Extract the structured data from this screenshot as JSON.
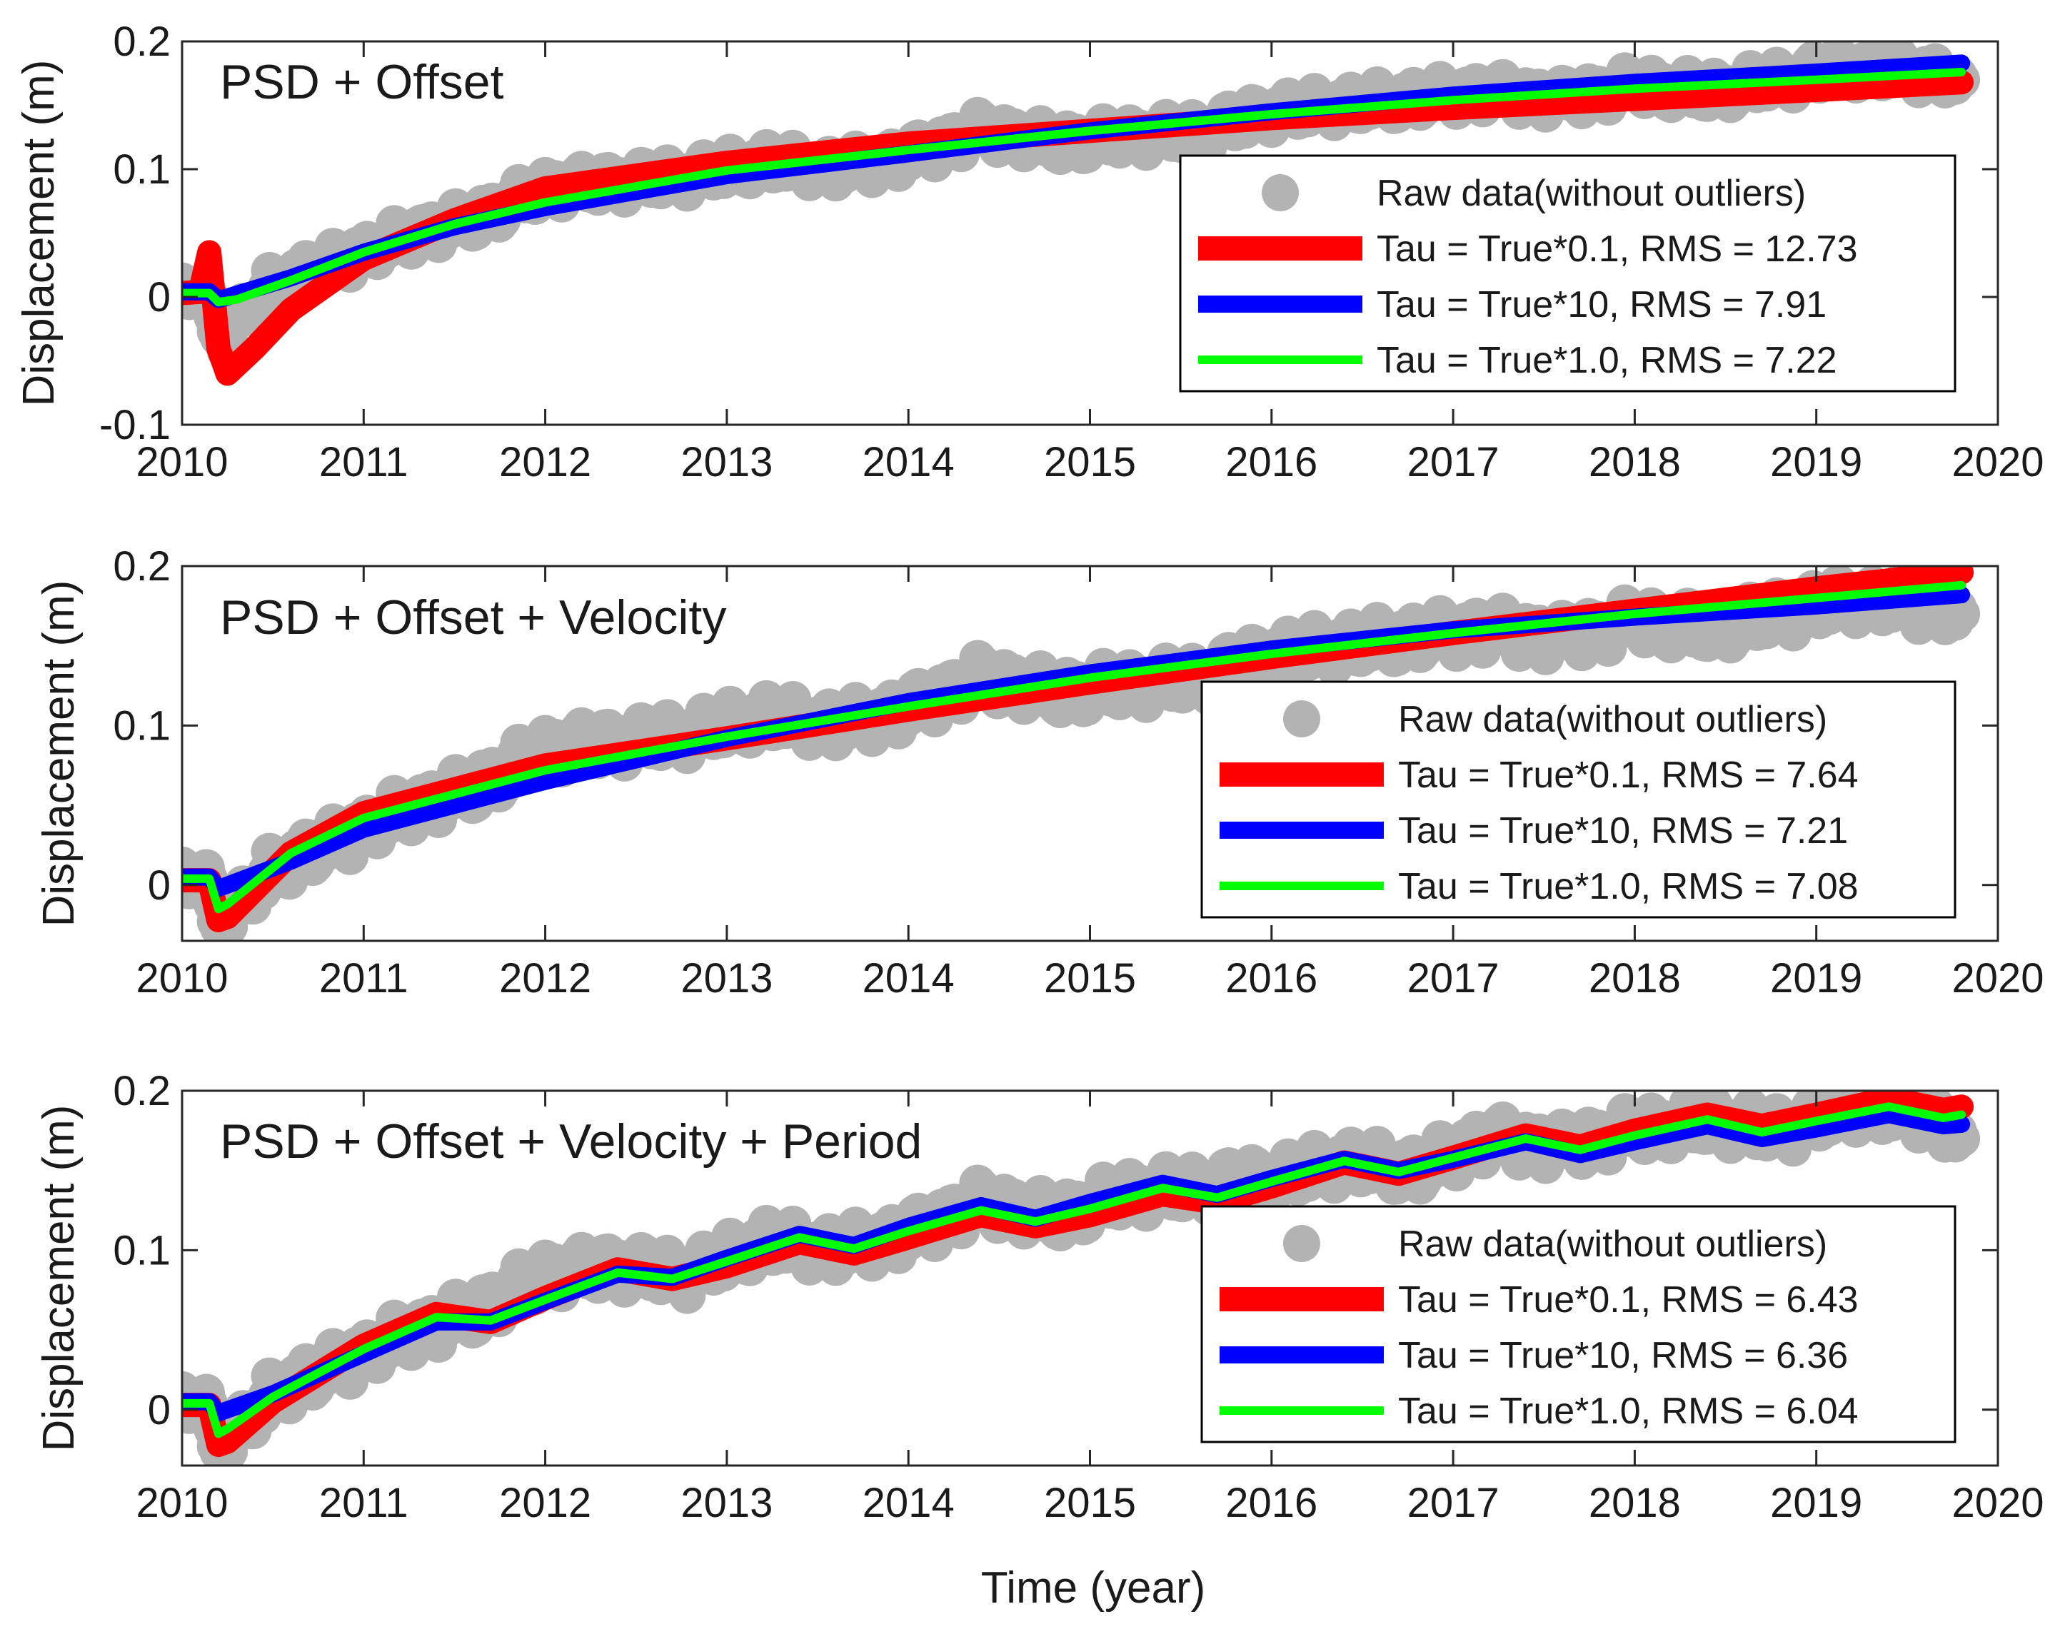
{
  "colors": {
    "raw": "#b3b3b3",
    "red": "#ff0000",
    "blue": "#0000ff",
    "green": "#00ff00",
    "axis": "#262626"
  },
  "xlabel": "Time (year)",
  "chart_data": [
    {
      "type": "line",
      "title": "PSD + Offset",
      "ylabel": "Displacement (m)",
      "xlim": [
        2010,
        2020
      ],
      "ylim": [
        -0.1,
        0.2
      ],
      "xticks": [
        2010,
        2011,
        2012,
        2013,
        2014,
        2015,
        2016,
        2017,
        2018,
        2019,
        2020
      ],
      "yticks": [
        -0.1,
        0,
        0.1,
        0.2
      ],
      "ytick_labels": [
        "-0.1",
        "0",
        "0.1",
        "0.2"
      ],
      "legend": [
        {
          "label": "Raw data(without outliers)",
          "kind": "marker",
          "color": "raw"
        },
        {
          "label": "Tau = True*0.1, RMS = 12.73",
          "kind": "line",
          "color": "red"
        },
        {
          "label": "Tau = True*10, RMS = 7.91",
          "kind": "line",
          "color": "blue"
        },
        {
          "label": "Tau = True*1.0, RMS = 7.22",
          "kind": "line",
          "color": "green"
        }
      ],
      "raw_data": {
        "x": [
          2010.0,
          2010.1,
          2010.2,
          2010.3,
          2010.5,
          2010.7,
          2011.0,
          2011.3,
          2011.6,
          2012.0,
          2012.4,
          2012.8,
          2013.2,
          2013.6,
          2014.0,
          2014.4,
          2014.8,
          2015.2,
          2015.6,
          2016.0,
          2016.4,
          2016.8,
          2017.2,
          2017.6,
          2018.0,
          2018.4,
          2018.8,
          2019.2,
          2019.6,
          2019.8
        ],
        "y": [
          0.0,
          0.015,
          -0.035,
          -0.02,
          0.01,
          0.02,
          0.035,
          0.05,
          0.06,
          0.085,
          0.09,
          0.095,
          0.105,
          0.1,
          0.11,
          0.13,
          0.12,
          0.125,
          0.13,
          0.145,
          0.15,
          0.155,
          0.16,
          0.155,
          0.165,
          0.16,
          0.17,
          0.18,
          0.175,
          0.17
        ]
      },
      "series": [
        {
          "name": "Tau = True*0.1",
          "color": "red",
          "x": [
            2010.0,
            2010.1,
            2010.15,
            2010.2,
            2010.25,
            2010.4,
            2010.6,
            2011.0,
            2011.5,
            2012.0,
            2013.0,
            2014.0,
            2015.0,
            2016.0,
            2017.0,
            2018.0,
            2019.0,
            2019.8
          ],
          "y": [
            0.003,
            0.004,
            0.035,
            -0.04,
            -0.06,
            -0.04,
            -0.01,
            0.03,
            0.06,
            0.085,
            0.105,
            0.12,
            0.13,
            0.14,
            0.148,
            0.155,
            0.162,
            0.168
          ]
        },
        {
          "name": "Tau = True*10",
          "color": "blue",
          "x": [
            2010.0,
            2010.15,
            2010.2,
            2010.25,
            2010.6,
            2011.0,
            2011.5,
            2012.0,
            2013.0,
            2014.0,
            2015.0,
            2016.0,
            2017.0,
            2018.0,
            2019.0,
            2019.8
          ],
          "y": [
            0.004,
            0.004,
            -0.002,
            0.0,
            0.015,
            0.035,
            0.055,
            0.07,
            0.095,
            0.112,
            0.13,
            0.145,
            0.158,
            0.168,
            0.176,
            0.183
          ]
        },
        {
          "name": "Tau = True*1.0",
          "color": "green",
          "x": [
            2010.0,
            2010.15,
            2010.2,
            2010.3,
            2010.6,
            2011.0,
            2011.5,
            2012.0,
            2013.0,
            2014.0,
            2015.0,
            2016.0,
            2017.0,
            2018.0,
            2019.0,
            2019.8
          ],
          "y": [
            0.003,
            0.003,
            -0.004,
            -0.002,
            0.013,
            0.035,
            0.057,
            0.074,
            0.099,
            0.115,
            0.13,
            0.143,
            0.154,
            0.163,
            0.17,
            0.176
          ]
        }
      ]
    },
    {
      "type": "line",
      "title": "PSD + Offset + Velocity",
      "ylabel": "Displacement (m)",
      "xlim": [
        2010,
        2020
      ],
      "ylim": [
        -0.035,
        0.2
      ],
      "xticks": [
        2010,
        2011,
        2012,
        2013,
        2014,
        2015,
        2016,
        2017,
        2018,
        2019,
        2020
      ],
      "yticks": [
        0,
        0.1,
        0.2
      ],
      "ytick_labels": [
        "0",
        "0.1",
        "0.2"
      ],
      "legend": [
        {
          "label": "Raw data(without outliers)",
          "kind": "marker",
          "color": "raw"
        },
        {
          "label": "Tau = True*0.1, RMS = 7.64",
          "kind": "line",
          "color": "red"
        },
        {
          "label": "Tau = True*10, RMS = 7.21",
          "kind": "line",
          "color": "blue"
        },
        {
          "label": "Tau = True*1.0, RMS = 7.08",
          "kind": "line",
          "color": "green"
        }
      ],
      "raw_data": {
        "x": [
          2010.0,
          2010.1,
          2010.2,
          2010.3,
          2010.5,
          2010.7,
          2011.0,
          2011.3,
          2011.6,
          2012.0,
          2012.4,
          2012.8,
          2013.2,
          2013.6,
          2014.0,
          2014.4,
          2014.8,
          2015.2,
          2015.6,
          2016.0,
          2016.4,
          2016.8,
          2017.2,
          2017.6,
          2018.0,
          2018.4,
          2018.8,
          2019.2,
          2019.6,
          2019.8
        ],
        "y": [
          0.0,
          0.015,
          -0.03,
          -0.015,
          0.01,
          0.02,
          0.035,
          0.05,
          0.06,
          0.085,
          0.09,
          0.095,
          0.105,
          0.1,
          0.11,
          0.13,
          0.12,
          0.125,
          0.13,
          0.145,
          0.15,
          0.155,
          0.16,
          0.155,
          0.165,
          0.16,
          0.17,
          0.18,
          0.175,
          0.17
        ]
      },
      "series": [
        {
          "name": "Tau = True*0.1",
          "color": "red",
          "x": [
            2010.0,
            2010.15,
            2010.2,
            2010.25,
            2010.6,
            2011.0,
            2012.0,
            2013.0,
            2014.0,
            2015.0,
            2016.0,
            2017.0,
            2018.0,
            2019.0,
            2019.8
          ],
          "y": [
            0.003,
            0.003,
            -0.022,
            -0.02,
            0.02,
            0.045,
            0.075,
            0.092,
            0.11,
            0.127,
            0.143,
            0.158,
            0.172,
            0.186,
            0.196
          ]
        },
        {
          "name": "Tau = True*10",
          "color": "blue",
          "x": [
            2010.0,
            2010.15,
            2010.2,
            2010.25,
            2010.6,
            2011.0,
            2012.0,
            2013.0,
            2014.0,
            2015.0,
            2016.0,
            2017.0,
            2018.0,
            2019.0,
            2019.8
          ],
          "y": [
            0.005,
            0.005,
            -0.002,
            0.0,
            0.015,
            0.035,
            0.065,
            0.092,
            0.115,
            0.133,
            0.148,
            0.16,
            0.168,
            0.175,
            0.182
          ]
        },
        {
          "name": "Tau = True*1.0",
          "color": "green",
          "x": [
            2010.0,
            2010.15,
            2010.2,
            2010.25,
            2010.6,
            2011.0,
            2012.0,
            2013.0,
            2014.0,
            2015.0,
            2016.0,
            2017.0,
            2018.0,
            2019.0,
            2019.8
          ],
          "y": [
            0.004,
            0.004,
            -0.015,
            -0.012,
            0.02,
            0.042,
            0.072,
            0.093,
            0.112,
            0.13,
            0.145,
            0.158,
            0.17,
            0.18,
            0.188
          ]
        }
      ]
    },
    {
      "type": "line",
      "title": "PSD + Offset + Velocity + Period",
      "ylabel": "Displacement (m)",
      "xlim": [
        2010,
        2020
      ],
      "ylim": [
        -0.035,
        0.2
      ],
      "xticks": [
        2010,
        2011,
        2012,
        2013,
        2014,
        2015,
        2016,
        2017,
        2018,
        2019,
        2020
      ],
      "yticks": [
        0,
        0.1,
        0.2
      ],
      "ytick_labels": [
        "0",
        "0.1",
        "0.2"
      ],
      "legend": [
        {
          "label": "Raw data(without outliers)",
          "kind": "marker",
          "color": "raw"
        },
        {
          "label": "Tau = True*0.1, RMS = 6.43",
          "kind": "line",
          "color": "red"
        },
        {
          "label": "Tau = True*10, RMS = 6.36",
          "kind": "line",
          "color": "blue"
        },
        {
          "label": "Tau = True*1.0, RMS = 6.04",
          "kind": "line",
          "color": "green"
        }
      ],
      "raw_data": {
        "x": [
          2010.0,
          2010.1,
          2010.2,
          2010.3,
          2010.5,
          2010.7,
          2011.0,
          2011.3,
          2011.6,
          2012.0,
          2012.4,
          2012.8,
          2013.2,
          2013.6,
          2014.0,
          2014.4,
          2014.8,
          2015.2,
          2015.6,
          2016.0,
          2016.4,
          2016.8,
          2017.2,
          2017.6,
          2018.0,
          2018.4,
          2018.8,
          2019.2,
          2019.6,
          2019.8
        ],
        "y": [
          0.0,
          0.015,
          -0.03,
          -0.015,
          0.01,
          0.02,
          0.035,
          0.05,
          0.06,
          0.085,
          0.09,
          0.085,
          0.105,
          0.1,
          0.11,
          0.13,
          0.12,
          0.135,
          0.14,
          0.145,
          0.155,
          0.15,
          0.17,
          0.165,
          0.175,
          0.18,
          0.175,
          0.19,
          0.185,
          0.17
        ]
      },
      "series": [
        {
          "name": "Tau = True*0.1",
          "color": "red",
          "x": [
            2010.0,
            2010.15,
            2010.2,
            2010.25,
            2010.5,
            2011.0,
            2011.4,
            2011.7,
            2012.0,
            2012.4,
            2012.7,
            2013.0,
            2013.4,
            2013.7,
            2014.0,
            2014.4,
            2014.7,
            2015.0,
            2015.4,
            2015.7,
            2016.0,
            2016.4,
            2016.7,
            2017.0,
            2017.4,
            2017.7,
            2018.0,
            2018.4,
            2018.7,
            2019.0,
            2019.4,
            2019.7,
            2019.8
          ],
          "y": [
            0.003,
            0.003,
            -0.022,
            -0.02,
            0.005,
            0.04,
            0.06,
            0.055,
            0.07,
            0.088,
            0.082,
            0.09,
            0.105,
            0.098,
            0.108,
            0.122,
            0.115,
            0.122,
            0.135,
            0.13,
            0.14,
            0.155,
            0.148,
            0.158,
            0.172,
            0.165,
            0.175,
            0.185,
            0.178,
            0.185,
            0.195,
            0.188,
            0.19
          ]
        },
        {
          "name": "Tau = True*10",
          "color": "blue",
          "x": [
            2010.0,
            2010.15,
            2010.2,
            2010.25,
            2010.5,
            2011.0,
            2011.4,
            2011.7,
            2012.0,
            2012.4,
            2012.7,
            2013.0,
            2013.4,
            2013.7,
            2014.0,
            2014.4,
            2014.7,
            2015.0,
            2015.4,
            2015.7,
            2016.0,
            2016.4,
            2016.7,
            2017.0,
            2017.4,
            2017.7,
            2018.0,
            2018.4,
            2018.7,
            2019.0,
            2019.4,
            2019.7,
            2019.8
          ],
          "y": [
            0.005,
            0.005,
            -0.002,
            0.0,
            0.01,
            0.035,
            0.055,
            0.055,
            0.068,
            0.085,
            0.083,
            0.095,
            0.11,
            0.103,
            0.115,
            0.128,
            0.12,
            0.13,
            0.142,
            0.135,
            0.145,
            0.157,
            0.15,
            0.157,
            0.168,
            0.16,
            0.168,
            0.178,
            0.17,
            0.176,
            0.185,
            0.178,
            0.179
          ]
        },
        {
          "name": "Tau = True*1.0",
          "color": "green",
          "x": [
            2010.0,
            2010.15,
            2010.2,
            2010.25,
            2010.5,
            2011.0,
            2011.4,
            2011.7,
            2012.0,
            2012.4,
            2012.7,
            2013.0,
            2013.4,
            2013.7,
            2014.0,
            2014.4,
            2014.7,
            2015.0,
            2015.4,
            2015.7,
            2016.0,
            2016.4,
            2016.7,
            2017.0,
            2017.4,
            2017.7,
            2018.0,
            2018.4,
            2018.7,
            2019.0,
            2019.4,
            2019.7,
            2019.8
          ],
          "y": [
            0.004,
            0.004,
            -0.015,
            -0.012,
            0.008,
            0.038,
            0.058,
            0.056,
            0.069,
            0.086,
            0.082,
            0.093,
            0.108,
            0.101,
            0.112,
            0.125,
            0.118,
            0.126,
            0.139,
            0.133,
            0.143,
            0.156,
            0.149,
            0.158,
            0.17,
            0.163,
            0.172,
            0.182,
            0.174,
            0.181,
            0.19,
            0.183,
            0.185
          ]
        }
      ]
    }
  ]
}
